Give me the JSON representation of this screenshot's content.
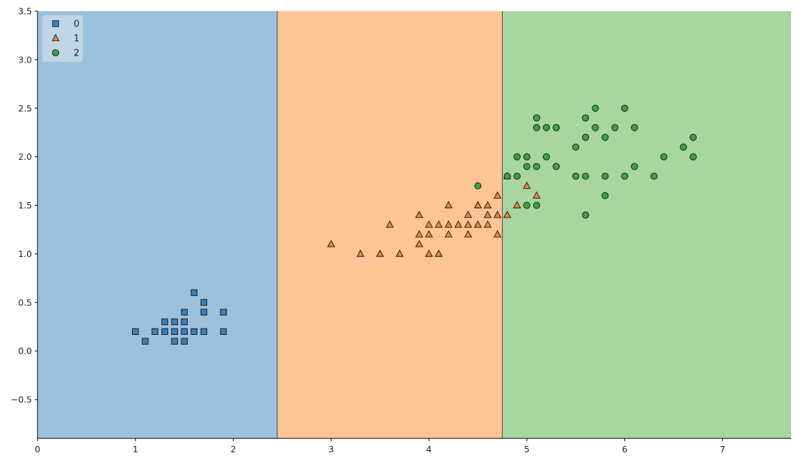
{
  "chart_data": {
    "type": "scatter",
    "title": "",
    "xlabel": "",
    "ylabel": "",
    "xlim": [
      0,
      7.7
    ],
    "ylim": [
      -0.9,
      3.5
    ],
    "xticks": [
      "0",
      "1",
      "2",
      "3",
      "4",
      "5",
      "6",
      "7"
    ],
    "yticks": [
      "−0.5",
      "0.0",
      "0.5",
      "1.0",
      "1.5",
      "2.0",
      "2.5",
      "3.0",
      "3.5"
    ],
    "grid": false,
    "legend_position": "top-left",
    "decision_regions": [
      {
        "class": "0",
        "x_from": 0,
        "x_to": 2.45,
        "color": "#9cc1dc"
      },
      {
        "class": "1",
        "x_from": 2.45,
        "x_to": 4.75,
        "color": "#fdc593"
      },
      {
        "class": "2",
        "x_from": 4.75,
        "x_to": 7.7,
        "color": "#a8d5a0"
      }
    ],
    "series": [
      {
        "name": "0",
        "marker": "square",
        "color": "#3a7fb7",
        "points": [
          [
            1.0,
            0.2
          ],
          [
            1.1,
            0.1
          ],
          [
            1.2,
            0.2
          ],
          [
            1.3,
            0.2
          ],
          [
            1.3,
            0.3
          ],
          [
            1.4,
            0.1
          ],
          [
            1.4,
            0.2
          ],
          [
            1.4,
            0.3
          ],
          [
            1.5,
            0.1
          ],
          [
            1.5,
            0.2
          ],
          [
            1.5,
            0.3
          ],
          [
            1.5,
            0.4
          ],
          [
            1.6,
            0.2
          ],
          [
            1.6,
            0.6
          ],
          [
            1.7,
            0.2
          ],
          [
            1.7,
            0.4
          ],
          [
            1.7,
            0.5
          ],
          [
            1.9,
            0.2
          ],
          [
            1.9,
            0.4
          ]
        ]
      },
      {
        "name": "1",
        "marker": "triangle",
        "color": "#ef8636",
        "points": [
          [
            3.0,
            1.1
          ],
          [
            3.3,
            1.0
          ],
          [
            3.5,
            1.0
          ],
          [
            3.6,
            1.3
          ],
          [
            3.7,
            1.0
          ],
          [
            3.9,
            1.1
          ],
          [
            3.9,
            1.2
          ],
          [
            3.9,
            1.4
          ],
          [
            4.0,
            1.0
          ],
          [
            4.0,
            1.2
          ],
          [
            4.0,
            1.3
          ],
          [
            4.1,
            1.0
          ],
          [
            4.1,
            1.3
          ],
          [
            4.2,
            1.2
          ],
          [
            4.2,
            1.3
          ],
          [
            4.2,
            1.5
          ],
          [
            4.3,
            1.3
          ],
          [
            4.4,
            1.2
          ],
          [
            4.4,
            1.3
          ],
          [
            4.4,
            1.4
          ],
          [
            4.5,
            1.3
          ],
          [
            4.5,
            1.5
          ],
          [
            4.6,
            1.3
          ],
          [
            4.6,
            1.4
          ],
          [
            4.6,
            1.5
          ],
          [
            4.7,
            1.2
          ],
          [
            4.7,
            1.4
          ],
          [
            4.7,
            1.6
          ],
          [
            4.8,
            1.4
          ],
          [
            4.8,
            1.8
          ],
          [
            4.9,
            1.5
          ],
          [
            5.0,
            1.7
          ],
          [
            5.1,
            1.6
          ]
        ]
      },
      {
        "name": "2",
        "marker": "circle",
        "color": "#3ea044",
        "points": [
          [
            4.5,
            1.7
          ],
          [
            4.8,
            1.8
          ],
          [
            4.9,
            1.8
          ],
          [
            4.9,
            2.0
          ],
          [
            5.0,
            1.5
          ],
          [
            5.0,
            1.9
          ],
          [
            5.0,
            2.0
          ],
          [
            5.1,
            1.5
          ],
          [
            5.1,
            1.9
          ],
          [
            5.1,
            2.3
          ],
          [
            5.1,
            2.4
          ],
          [
            5.2,
            2.0
          ],
          [
            5.2,
            2.3
          ],
          [
            5.3,
            1.9
          ],
          [
            5.3,
            2.3
          ],
          [
            5.5,
            1.8
          ],
          [
            5.5,
            2.1
          ],
          [
            5.6,
            1.4
          ],
          [
            5.6,
            1.8
          ],
          [
            5.6,
            2.2
          ],
          [
            5.6,
            2.4
          ],
          [
            5.7,
            2.3
          ],
          [
            5.7,
            2.5
          ],
          [
            5.8,
            1.6
          ],
          [
            5.8,
            1.8
          ],
          [
            5.8,
            2.2
          ],
          [
            5.9,
            2.3
          ],
          [
            6.0,
            1.8
          ],
          [
            6.0,
            2.5
          ],
          [
            6.1,
            1.9
          ],
          [
            6.1,
            2.3
          ],
          [
            6.3,
            1.8
          ],
          [
            6.4,
            2.0
          ],
          [
            6.6,
            2.1
          ],
          [
            6.7,
            2.0
          ],
          [
            6.7,
            2.2
          ]
        ]
      }
    ]
  }
}
